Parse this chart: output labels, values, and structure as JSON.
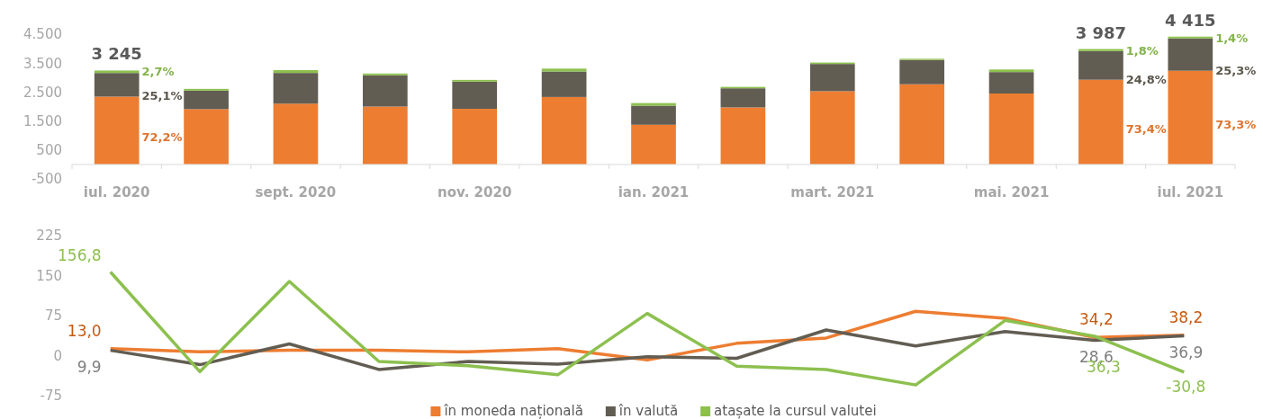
{
  "chart_data": [
    {
      "type": "bar",
      "stacked": true,
      "categories": [
        "iul. 2020",
        null,
        "sept. 2020",
        null,
        "nov. 2020",
        null,
        "ian. 2021",
        null,
        "mart. 2021",
        null,
        "mai. 2021",
        null,
        "iul. 2021"
      ],
      "series": [
        {
          "color": "#ed7d31",
          "values": [
            2343,
            1910,
            2100,
            2000,
            1920,
            2330,
            1370,
            1970,
            2530,
            2770,
            2450,
            2926,
            3236
          ]
        },
        {
          "color": "#625d52",
          "values": [
            815,
            640,
            1060,
            1080,
            940,
            880,
            660,
            660,
            940,
            840,
            740,
            989,
            1117
          ]
        },
        {
          "color": "#8dc04f",
          "values": [
            87,
            60,
            100,
            60,
            60,
            100,
            90,
            50,
            50,
            40,
            90,
            72,
            62
          ]
        }
      ],
      "annotations": [
        "72,2%",
        "25,1%",
        "2,7%",
        "73,4%",
        "24,8%",
        "1,8%",
        "73,3%",
        "25,3%",
        "1,4%"
      ],
      "totals": [
        "3 245",
        null,
        null,
        null,
        null,
        null,
        null,
        null,
        null,
        null,
        null,
        "3 987",
        "4 415"
      ],
      "ylim": [
        -500,
        4500
      ],
      "yticks": [
        {
          "value": -500,
          "label": "-500"
        },
        {
          "value": 500,
          "label": "500"
        },
        {
          "value": 1500,
          "label": "1.500"
        },
        {
          "value": 2500,
          "label": "2.500"
        },
        {
          "value": 3500,
          "label": "3.500"
        },
        {
          "value": 4500,
          "label": "4.500"
        }
      ],
      "grid": false,
      "legend": false
    },
    {
      "type": "line",
      "categories": [
        null,
        null,
        null,
        null,
        null,
        null,
        null,
        null,
        null,
        null,
        null,
        null,
        null
      ],
      "tick_labels": "y",
      "series": [
        {
          "name": "în moneda națională",
          "color": "#ed7d31",
          "values": [
            13.0,
            7,
            10,
            10,
            7,
            13,
            -8,
            23,
            33,
            83,
            70,
            34.2,
            38.2
          ],
          "value_labels": [
            "13,0",
            null,
            null,
            null,
            null,
            null,
            null,
            null,
            null,
            null,
            null,
            "34,2",
            "38,2"
          ]
        },
        {
          "name": "în valută",
          "color": "#625d52",
          "values": [
            9.9,
            -17,
            22,
            -26,
            -11,
            -16,
            -2,
            -5,
            48,
            18,
            45,
            28.6,
            36.9
          ],
          "value_labels": [
            "9,9",
            null,
            null,
            null,
            null,
            null,
            null,
            null,
            null,
            null,
            null,
            "28,6",
            "36,9"
          ]
        },
        {
          "name": "atașate la cursul valutei",
          "color": "#8dc04f",
          "values": [
            156.8,
            -30,
            139,
            -11,
            -19,
            -36,
            79,
            -20,
            -26,
            -55,
            66,
            36.3,
            -30.8
          ],
          "value_labels": [
            "156,8",
            null,
            null,
            null,
            null,
            null,
            null,
            null,
            null,
            null,
            null,
            "36,3",
            "-30,8"
          ]
        }
      ],
      "ylim": [
        -75,
        225
      ],
      "yticks": [
        -75,
        0,
        75,
        150,
        225
      ],
      "grid": false,
      "legend": "bottom",
      "line_style": "solid",
      "marker": "none"
    }
  ]
}
